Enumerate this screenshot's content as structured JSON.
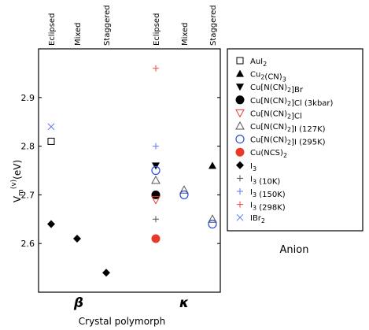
{
  "chart_data": {
    "type": "scatter",
    "xlabel": "Crystal polymorph",
    "ylabel_main": "V",
    "ylabel_sub": "m",
    "ylabel_sup": "(v)",
    "ylabel_unit": "(eV)",
    "ylim": [
      2.5,
      3.0
    ],
    "yticks": [
      "2.6",
      "2.7",
      "2.8",
      "2.9"
    ],
    "ytick_values": [
      2.6,
      2.7,
      2.8,
      2.9
    ],
    "columns": [
      "Eclipsed",
      "Mixed",
      "Staggered",
      "Eclipsed",
      "Mixed",
      "Staggered"
    ],
    "polymorphs": [
      {
        "label": "β",
        "columns": [
          0,
          1,
          2
        ]
      },
      {
        "label": "κ",
        "columns": [
          3,
          4,
          5
        ]
      }
    ],
    "legend_title": "Anion",
    "legend_position": "right, outside plot",
    "series": [
      {
        "id": "AuI2",
        "label_parts": [
          [
            "AuI",
            ""
          ],
          [
            "2",
            "sub"
          ]
        ],
        "marker": "square-open",
        "color": "#000000",
        "points": [
          {
            "col": 0,
            "y": 2.81
          }
        ]
      },
      {
        "id": "Cu2CN3",
        "label_parts": [
          [
            "Cu",
            ""
          ],
          [
            "2",
            "sub"
          ],
          [
            "(CN)",
            ""
          ],
          [
            "3",
            "sub"
          ]
        ],
        "marker": "triangle-up-filled",
        "color": "#000000",
        "points": [
          {
            "col": 5,
            "y": 2.76
          }
        ]
      },
      {
        "id": "CuNCN2Br",
        "label_parts": [
          [
            "Cu[N(CN)",
            ""
          ],
          [
            "2",
            "sub"
          ],
          [
            "]Br",
            ""
          ]
        ],
        "marker": "triangle-down-filled",
        "color": "#000000",
        "points": [
          {
            "col": 3,
            "y": 2.76
          }
        ]
      },
      {
        "id": "CuNCN2Cl_3kbar",
        "label_parts": [
          [
            "Cu[N(CN)",
            ""
          ],
          [
            "2",
            "sub"
          ],
          [
            "]Cl (3kbar)",
            ""
          ]
        ],
        "marker": "circle-filled",
        "color": "#000000",
        "points": [
          {
            "col": 3,
            "y": 2.7
          }
        ]
      },
      {
        "id": "CuNCN2Cl",
        "label_parts": [
          [
            "Cu[N(CN)",
            ""
          ],
          [
            "2",
            "sub"
          ],
          [
            "]Cl",
            ""
          ]
        ],
        "marker": "triangle-down-open",
        "color": "#e8392b",
        "points": [
          {
            "col": 3,
            "y": 2.69
          }
        ]
      },
      {
        "id": "CuNCN2I_127K",
        "label_parts": [
          [
            "Cu[N(CN)",
            ""
          ],
          [
            "2",
            "sub"
          ],
          [
            "]I (127K)",
            ""
          ]
        ],
        "marker": "triangle-up-open",
        "color": "#555555",
        "points": [
          {
            "col": 3,
            "y": 2.73
          },
          {
            "col": 4,
            "y": 2.71
          },
          {
            "col": 5,
            "y": 2.65
          }
        ]
      },
      {
        "id": "CuNCN2I_295K",
        "label_parts": [
          [
            "Cu[N(CN)",
            ""
          ],
          [
            "2",
            "sub"
          ],
          [
            "]I (295K)",
            ""
          ]
        ],
        "marker": "circle-open",
        "color": "#2a4fd6",
        "points": [
          {
            "col": 3,
            "y": 2.75
          },
          {
            "col": 4,
            "y": 2.7
          },
          {
            "col": 5,
            "y": 2.64
          }
        ]
      },
      {
        "id": "CuNCS2",
        "label_parts": [
          [
            "Cu(NCS)",
            ""
          ],
          [
            "2",
            "sub"
          ]
        ],
        "marker": "circle-filled",
        "color": "#e8392b",
        "points": [
          {
            "col": 3,
            "y": 2.61
          }
        ]
      },
      {
        "id": "I3",
        "label_parts": [
          [
            "I",
            ""
          ],
          [
            "3",
            "sub"
          ]
        ],
        "marker": "diamond-filled",
        "color": "#000000",
        "points": [
          {
            "col": 0,
            "y": 2.64
          },
          {
            "col": 1,
            "y": 2.61
          },
          {
            "col": 2,
            "y": 2.54
          }
        ]
      },
      {
        "id": "I3_10K",
        "label_parts": [
          [
            "I",
            ""
          ],
          [
            "3",
            "sub"
          ],
          [
            " (10K)",
            ""
          ]
        ],
        "marker": "plus",
        "color": "#555555",
        "points": [
          {
            "col": 3,
            "y": 2.65
          }
        ]
      },
      {
        "id": "I3_150K",
        "label_parts": [
          [
            "I",
            ""
          ],
          [
            "3",
            "sub"
          ],
          [
            " (150K)",
            ""
          ]
        ],
        "marker": "plus",
        "color": "#5a78f0",
        "points": [
          {
            "col": 3,
            "y": 2.8
          }
        ]
      },
      {
        "id": "I3_298K",
        "label_parts": [
          [
            "I",
            ""
          ],
          [
            "3",
            "sub"
          ],
          [
            " (298K)",
            ""
          ]
        ],
        "marker": "plus",
        "color": "#ee4a3c",
        "points": [
          {
            "col": 3,
            "y": 2.96
          }
        ]
      },
      {
        "id": "IBr2",
        "label_parts": [
          [
            "IBr",
            ""
          ],
          [
            "2",
            "sub"
          ]
        ],
        "marker": "x",
        "color": "#5a78f0",
        "points": [
          {
            "col": 0,
            "y": 2.84
          }
        ]
      }
    ]
  }
}
